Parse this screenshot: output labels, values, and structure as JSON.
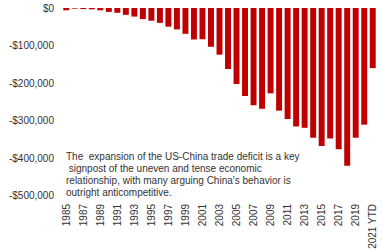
{
  "chart_data": {
    "type": "bar",
    "categories": [
      "1985",
      null,
      "1987",
      null,
      "1989",
      null,
      "1991",
      null,
      "1993",
      null,
      "1995",
      null,
      "1997",
      null,
      "1999",
      null,
      "2001",
      null,
      "2003",
      null,
      "2005",
      null,
      "2007",
      null,
      "2009",
      null,
      "2011",
      null,
      "2013",
      null,
      "2015",
      null,
      "2017",
      null,
      "2019",
      null,
      "2021 YTD"
    ],
    "values": [
      -6000,
      -1700,
      -2800,
      -3500,
      -6200,
      -10400,
      -12700,
      -18300,
      -22800,
      -29500,
      -33800,
      -39500,
      -49700,
      -56900,
      -68700,
      -83800,
      -83100,
      -103100,
      -124100,
      -162300,
      -202300,
      -234100,
      -258500,
      -268000,
      -226900,
      -273000,
      -295200,
      -315100,
      -318700,
      -344800,
      -367300,
      -346800,
      -375400,
      -419500,
      -345200,
      -310300,
      -160000
    ],
    "color": "#c00000",
    "ylim": [
      -500000,
      0
    ],
    "yticks": [
      {
        "value": -500000,
        "label": "-$500,000"
      },
      {
        "value": -400000,
        "label": "-$400,000"
      },
      {
        "value": -300000,
        "label": "-$300,000"
      },
      {
        "value": -200000,
        "label": "-$200,000"
      },
      {
        "value": -100000,
        "label": "-$100,000"
      },
      {
        "value": 0,
        "label": "$0"
      }
    ],
    "grid": false,
    "annotation": "The  expansion of the US-China trade deficit is a key signpost of the uneven and tense economic relationship, with many arguing China's behavior is outright anticompetitive."
  }
}
